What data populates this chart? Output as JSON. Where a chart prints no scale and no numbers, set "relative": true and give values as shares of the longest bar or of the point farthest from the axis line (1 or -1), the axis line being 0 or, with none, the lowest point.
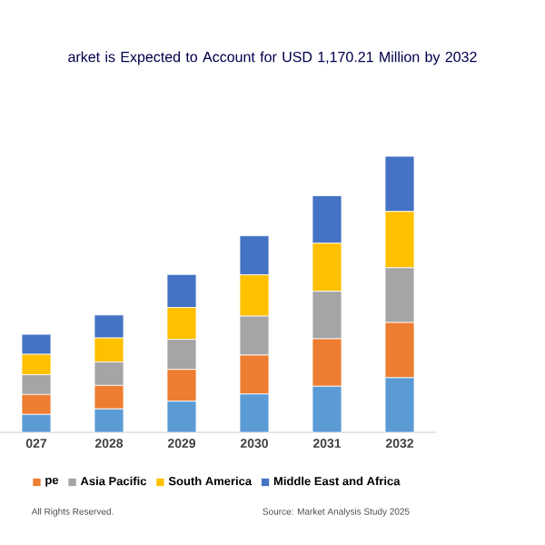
{
  "chart_data": {
    "type": "bar",
    "stacked": true,
    "relative": true,
    "title": "arket is Expected to Account for USD 1,170.21 Million by 2032",
    "categories": [
      "027",
      "2028",
      "2029",
      "2030",
      "2031",
      "2032"
    ],
    "series": [
      {
        "color": "#5b9bd5",
        "values": [
          0.065,
          0.085,
          0.113,
          0.139,
          0.167,
          0.198
        ]
      },
      {
        "name": "pe",
        "color": "#ed7d31",
        "values": [
          0.072,
          0.085,
          0.115,
          0.141,
          0.172,
          0.2
        ]
      },
      {
        "name": "Asia Pacific",
        "color": "#a5a5a5",
        "values": [
          0.072,
          0.085,
          0.109,
          0.141,
          0.172,
          0.198
        ]
      },
      {
        "name": "South America",
        "color": "#ffc000",
        "values": [
          0.074,
          0.087,
          0.115,
          0.15,
          0.174,
          0.204
        ]
      },
      {
        "name": "Middle East and Africa",
        "color": "#4472c4",
        "values": [
          0.072,
          0.083,
          0.12,
          0.141,
          0.172,
          0.2
        ]
      }
    ],
    "legend": "bottom",
    "annotations": [
      "All Rights Reserved.",
      "Source: Market Analysis Study 2025"
    ]
  }
}
